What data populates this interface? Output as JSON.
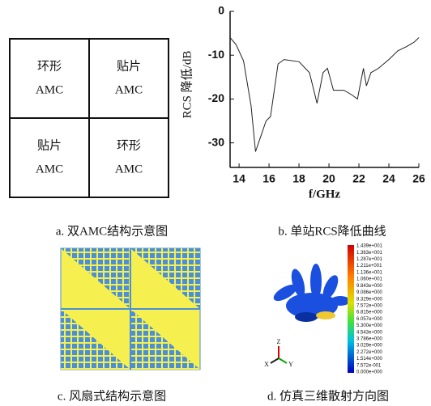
{
  "figure_a": {
    "cells": [
      [
        "环形",
        "AMC"
      ],
      [
        "贴片",
        "AMC"
      ],
      [
        "贴片",
        "AMC"
      ],
      [
        "环形",
        "AMC"
      ]
    ],
    "caption": "a. 双AMC结构示意图"
  },
  "chart_data": {
    "type": "line",
    "xlabel": "f/GHz",
    "ylabel": "RCS 降低/dB",
    "caption": "b. 单站RCS降低曲线",
    "x": [
      13.4,
      13.8,
      14.3,
      14.8,
      15.1,
      15.4,
      15.8,
      16.1,
      16.6,
      17,
      18,
      18.7,
      19.2,
      19.6,
      19.9,
      20.3,
      21,
      21.5,
      21.9,
      22.3,
      22.5,
      22.8,
      23.3,
      24,
      24.6,
      25.2,
      25.7,
      26
    ],
    "values": [
      -6,
      -7.6,
      -11.3,
      -21.5,
      -32,
      -29,
      -25,
      -24,
      -12,
      -11,
      -11.5,
      -14,
      -21,
      -14,
      -13,
      -18,
      -18,
      -19,
      -20,
      -13,
      -17,
      -14,
      -13,
      -11,
      -9,
      -8,
      -7,
      -6
    ],
    "color": "#222222",
    "xlim": [
      13.4,
      26
    ],
    "ylim": [
      -35.6,
      0
    ],
    "xticks": [
      14,
      16,
      18,
      20,
      22,
      24,
      26
    ],
    "yticks": [
      0,
      -10,
      -20,
      -30
    ]
  },
  "figure_c": {
    "caption": "c. 风扇式结构示意图"
  },
  "figure_d": {
    "caption": "d. 仿真三维散射方向图",
    "axes": [
      "Z",
      "X",
      "Y"
    ],
    "colorbar_labels": [
      "1.439e+001",
      "1.363e+001",
      "1.287e+001",
      "1.211e+001",
      "1.136e+001",
      "1.060e+001",
      "9.843e+000",
      "9.086e+000",
      "8.329e+000",
      "7.572e+000",
      "6.815e+000",
      "6.057e+000",
      "5.300e+000",
      "4.543e+000",
      "3.786e+000",
      "3.029e+000",
      "2.272e+000",
      "1.514e+000",
      "7.572e-001",
      "0.000e+000"
    ]
  }
}
